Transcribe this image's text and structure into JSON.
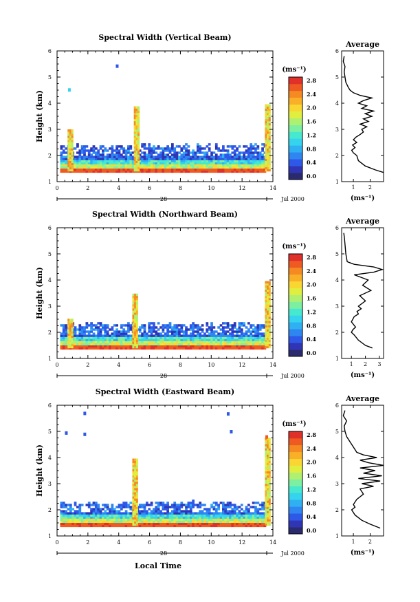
{
  "common": {
    "ylabel": "Height (km)",
    "date_mark": "28",
    "date_label": "Jul 2000",
    "xlabel": "Local Time",
    "colorbar_unit": "(ms⁻¹)",
    "profile_title": "Average",
    "profile_xlabel": "(ms⁻¹)",
    "colorbar_levels": [
      0.0,
      0.2,
      0.4,
      0.6,
      0.8,
      1.0,
      1.2,
      1.4,
      1.6,
      1.8,
      2.0,
      2.2,
      2.4,
      2.6,
      2.8
    ],
    "colorbar_ticks": [
      "2.8",
      "2.4",
      "2.0",
      "1.6",
      "1.2",
      "0.8",
      "0.4",
      "0.0"
    ],
    "colormap": [
      "#2a2a6e",
      "#2f35b5",
      "#2e59e8",
      "#2f86f0",
      "#2fb0f2",
      "#35d3ee",
      "#46e8cf",
      "#7cf0a0",
      "#b0f070",
      "#e0ee40",
      "#fad632",
      "#f9b028",
      "#f58a22",
      "#ee5a22",
      "#e0302a"
    ]
  },
  "chart_data": [
    {
      "type": "heatmap",
      "title": "Spectral Width (Vertical Beam)",
      "xlim": [
        0,
        14
      ],
      "ylim": [
        1,
        6
      ],
      "xticks": [
        0,
        2,
        4,
        6,
        8,
        10,
        12,
        14
      ],
      "yticks": [
        1,
        2,
        3,
        4,
        5,
        6
      ],
      "top_km": 2.35,
      "fill_top_km": 1.95,
      "spikes": [
        {
          "t": 0.8,
          "top": 3.0
        },
        {
          "t": 5.1,
          "top": 3.85
        },
        {
          "t": 13.6,
          "top": 3.95
        }
      ],
      "isolated": [
        {
          "t": 3.9,
          "h": 5.43,
          "v": 0.4
        },
        {
          "t": 0.8,
          "h": 4.52,
          "v": 1.0
        }
      ],
      "profile": {
        "xlim": [
          0.3,
          2.8
        ],
        "xticks": [
          1,
          2
        ],
        "h": [
          1.35,
          1.45,
          1.6,
          1.8,
          2.0,
          2.1,
          2.2,
          2.3,
          2.4,
          2.5,
          2.6,
          2.7,
          2.8,
          2.9,
          3.0,
          3.1,
          3.2,
          3.3,
          3.4,
          3.5,
          3.6,
          3.7,
          3.8,
          3.9,
          4.0,
          4.1,
          4.2,
          4.3,
          4.4,
          4.5,
          4.6,
          4.8,
          5.0,
          5.2,
          5.4,
          5.6,
          5.8
        ],
        "v": [
          2.8,
          2.3,
          1.7,
          1.3,
          1.2,
          1.0,
          0.9,
          1.1,
          0.95,
          1.2,
          1.0,
          1.15,
          1.4,
          1.6,
          1.5,
          1.8,
          1.4,
          1.9,
          1.6,
          2.1,
          1.7,
          2.2,
          1.5,
          1.8,
          1.3,
          1.6,
          2.1,
          1.4,
          1.0,
          0.8,
          0.7,
          0.55,
          0.5,
          0.45,
          0.5,
          0.4,
          0.45
        ]
      }
    },
    {
      "type": "heatmap",
      "title": "Spectral Width (Northward Beam)",
      "xlim": [
        0,
        14
      ],
      "ylim": [
        1,
        6
      ],
      "xticks": [
        0,
        2,
        4,
        6,
        8,
        10,
        12,
        14
      ],
      "yticks": [
        1,
        2,
        3,
        4,
        5,
        6
      ],
      "top_km": 2.3,
      "fill_top_km": 1.9,
      "spikes": [
        {
          "t": 0.8,
          "top": 2.5
        },
        {
          "t": 5.0,
          "top": 3.45
        },
        {
          "t": 13.6,
          "top": 3.95
        }
      ],
      "isolated": [],
      "profile": {
        "xlim": [
          0.3,
          3.3
        ],
        "xticks": [
          1,
          2,
          3
        ],
        "h": [
          1.4,
          1.5,
          1.7,
          1.9,
          2.0,
          2.1,
          2.2,
          2.4,
          2.6,
          2.7,
          2.8,
          2.9,
          3.0,
          3.2,
          3.4,
          3.6,
          3.8,
          4.0,
          4.2,
          4.3,
          4.4,
          4.5,
          4.6,
          4.7,
          5.0,
          5.3,
          5.6,
          5.8
        ],
        "v": [
          2.5,
          2.0,
          1.5,
          1.2,
          1.0,
          1.1,
          1.3,
          1.0,
          1.2,
          1.5,
          1.4,
          1.7,
          1.5,
          2.0,
          1.6,
          2.4,
          1.8,
          2.2,
          1.2,
          2.6,
          3.2,
          2.6,
          1.2,
          0.7,
          0.6,
          0.55,
          0.5,
          0.45
        ]
      }
    },
    {
      "type": "heatmap",
      "title": "Spectral Width (Eastward Beam)",
      "xlim": [
        0,
        14
      ],
      "ylim": [
        1,
        6
      ],
      "xticks": [
        0,
        2,
        4,
        6,
        8,
        10,
        12,
        14
      ],
      "yticks": [
        1,
        2,
        3,
        4,
        5,
        6
      ],
      "top_km": 2.25,
      "fill_top_km": 1.9,
      "spikes": [
        {
          "t": 5.0,
          "top": 3.95
        },
        {
          "t": 13.6,
          "top": 4.7
        }
      ],
      "isolated": [
        {
          "t": 1.8,
          "h": 5.7,
          "v": 0.6
        },
        {
          "t": 0.6,
          "h": 4.95,
          "v": 0.5
        },
        {
          "t": 1.8,
          "h": 4.9,
          "v": 0.5
        },
        {
          "t": 11.1,
          "h": 5.68,
          "v": 0.4
        },
        {
          "t": 11.3,
          "h": 5.0,
          "v": 0.5
        },
        {
          "t": 13.6,
          "h": 4.8,
          "v": 2.6
        }
      ],
      "profile": {
        "xlim": [
          0.3,
          2.8
        ],
        "xticks": [
          1,
          2
        ],
        "h": [
          1.3,
          1.45,
          1.6,
          1.8,
          2.0,
          2.1,
          2.2,
          2.4,
          2.6,
          2.8,
          2.9,
          3.0,
          3.1,
          3.2,
          3.3,
          3.4,
          3.5,
          3.6,
          3.7,
          3.8,
          3.9,
          4.0,
          4.1,
          4.2,
          4.4,
          4.6,
          4.8,
          5.0,
          5.2,
          5.4,
          5.6,
          5.8
        ],
        "v": [
          2.6,
          2.0,
          1.5,
          1.1,
          0.9,
          1.1,
          1.0,
          1.2,
          1.6,
          1.4,
          2.2,
          1.5,
          2.6,
          1.3,
          2.7,
          1.6,
          2.3,
          1.4,
          2.8,
          1.9,
          1.4,
          2.4,
          1.6,
          1.2,
          1.0,
          0.8,
          0.6,
          0.5,
          0.45,
          0.6,
          0.4,
          0.5
        ]
      }
    }
  ]
}
